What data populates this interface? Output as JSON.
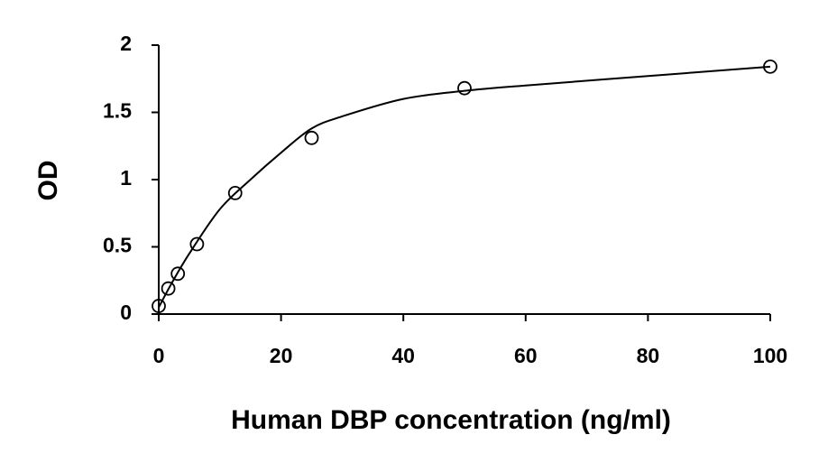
{
  "chart_data": {
    "type": "scatter",
    "x_label": "Human DBP concentration (ng/ml)",
    "y_label": "OD",
    "x": [
      0,
      1.56,
      3.125,
      6.25,
      12.5,
      25,
      50,
      100
    ],
    "values": [
      0.06,
      0.19,
      0.3,
      0.52,
      0.9,
      1.31,
      1.68,
      1.84
    ],
    "fit": {
      "x": [
        0,
        2,
        5,
        10,
        15,
        20,
        25,
        30,
        40,
        50,
        60,
        80,
        100
      ],
      "values": [
        0.05,
        0.22,
        0.45,
        0.78,
        1.0,
        1.2,
        1.38,
        1.47,
        1.6,
        1.66,
        1.7,
        1.77,
        1.84
      ]
    },
    "color": "#000000",
    "xlim": [
      0,
      100
    ],
    "xticks": [
      0,
      20,
      40,
      60,
      80,
      100
    ],
    "ylim": [
      0,
      2
    ],
    "yticks": [
      0,
      0.5,
      1,
      1.5,
      2
    ]
  }
}
